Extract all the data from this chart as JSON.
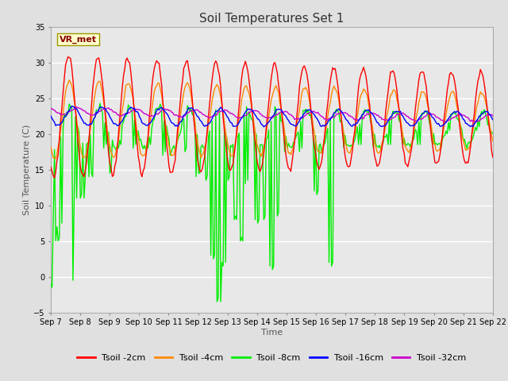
{
  "title": "Soil Temperatures Set 1",
  "xlabel": "Time",
  "ylabel": "Soil Temperature (C)",
  "ylim": [
    -5,
    35
  ],
  "yticks": [
    -5,
    0,
    5,
    10,
    15,
    20,
    25,
    30,
    35
  ],
  "xtick_labels": [
    "Sep 7",
    "Sep 8",
    "Sep 9",
    "Sep 10",
    "Sep 11",
    "Sep 12",
    "Sep 13",
    "Sep 14",
    "Sep 15",
    "Sep 16",
    "Sep 17",
    "Sep 18",
    "Sep 19",
    "Sep 20",
    "Sep 21",
    "Sep 22"
  ],
  "colors": {
    "Tsoil -2cm": "#ff0000",
    "Tsoil -4cm": "#ff8800",
    "Tsoil -8cm": "#00ee00",
    "Tsoil -16cm": "#0000ff",
    "Tsoil -32cm": "#cc00cc"
  },
  "line_width": 1.0,
  "background_color": "#e0e0e0",
  "plot_bg_color": "#e8e8e8",
  "grid_color": "#ffffff",
  "annotation_text": "VR_met",
  "annotation_bg": "#ffffcc",
  "annotation_border": "#999900",
  "title_fontsize": 11,
  "tick_fontsize": 7,
  "label_fontsize": 8,
  "legend_fontsize": 8
}
